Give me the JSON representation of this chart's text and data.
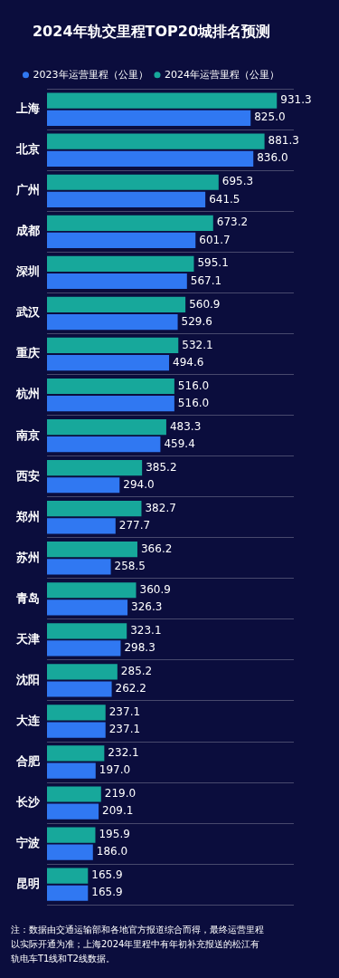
{
  "chart_data": {
    "type": "bar",
    "orientation": "horizontal",
    "title": "2024年轨交里程TOP20城排名预测",
    "categories": [
      "上海",
      "北京",
      "广州",
      "成都",
      "深圳",
      "武汉",
      "重庆",
      "杭州",
      "南京",
      "西安",
      "郑州",
      "苏州",
      "青岛",
      "天津",
      "沈阳",
      "大连",
      "合肥",
      "长沙",
      "宁波",
      "昆明"
    ],
    "series": [
      {
        "name": "2024年运营里程（公里）",
        "color": "#17a89b",
        "values": [
          931.3,
          881.3,
          695.3,
          673.2,
          595.1,
          560.9,
          532.1,
          516.0,
          483.3,
          385.2,
          382.7,
          366.2,
          360.9,
          323.1,
          285.2,
          237.1,
          232.1,
          219.0,
          195.9,
          165.9
        ],
        "value_labels": [
          "931.3",
          "881.3",
          "695.3",
          "673.2",
          "595.1",
          "560.9",
          "532.1",
          "516.0",
          "483.3",
          "385.2",
          "382.7",
          "366.2",
          "360.9",
          "323.1",
          "285.2",
          "237.1",
          "232.1",
          "219.0",
          "195.9",
          "165.9"
        ]
      },
      {
        "name": "2023年运营里程（公里）",
        "color": "#3078f2",
        "values": [
          825.0,
          836.0,
          641.5,
          601.7,
          567.1,
          529.6,
          494.6,
          516.0,
          459.4,
          294.0,
          277.7,
          258.5,
          326.3,
          298.3,
          262.2,
          237.1,
          197.0,
          209.1,
          186.0,
          165.9
        ],
        "value_labels": [
          "825.0",
          "836.0",
          "641.5",
          "601.7",
          "567.1",
          "529.6",
          "494.6",
          "516.0",
          "459.4",
          "294.0",
          "277.7",
          "258.5",
          "326.3",
          "298.3",
          "262.2",
          "237.1",
          "197.0",
          "209.1",
          "186.0",
          "165.9"
        ]
      }
    ],
    "legend": "top",
    "grid": "y",
    "tick_labels": "y",
    "annotations": [
      "注：数据由交通运输部和各地官方报道综合而得，最终运营里程以实际开通为准；上海2024年里程中有年初补充报送的松江有轨电车T1线和T2线数据。"
    ]
  }
}
